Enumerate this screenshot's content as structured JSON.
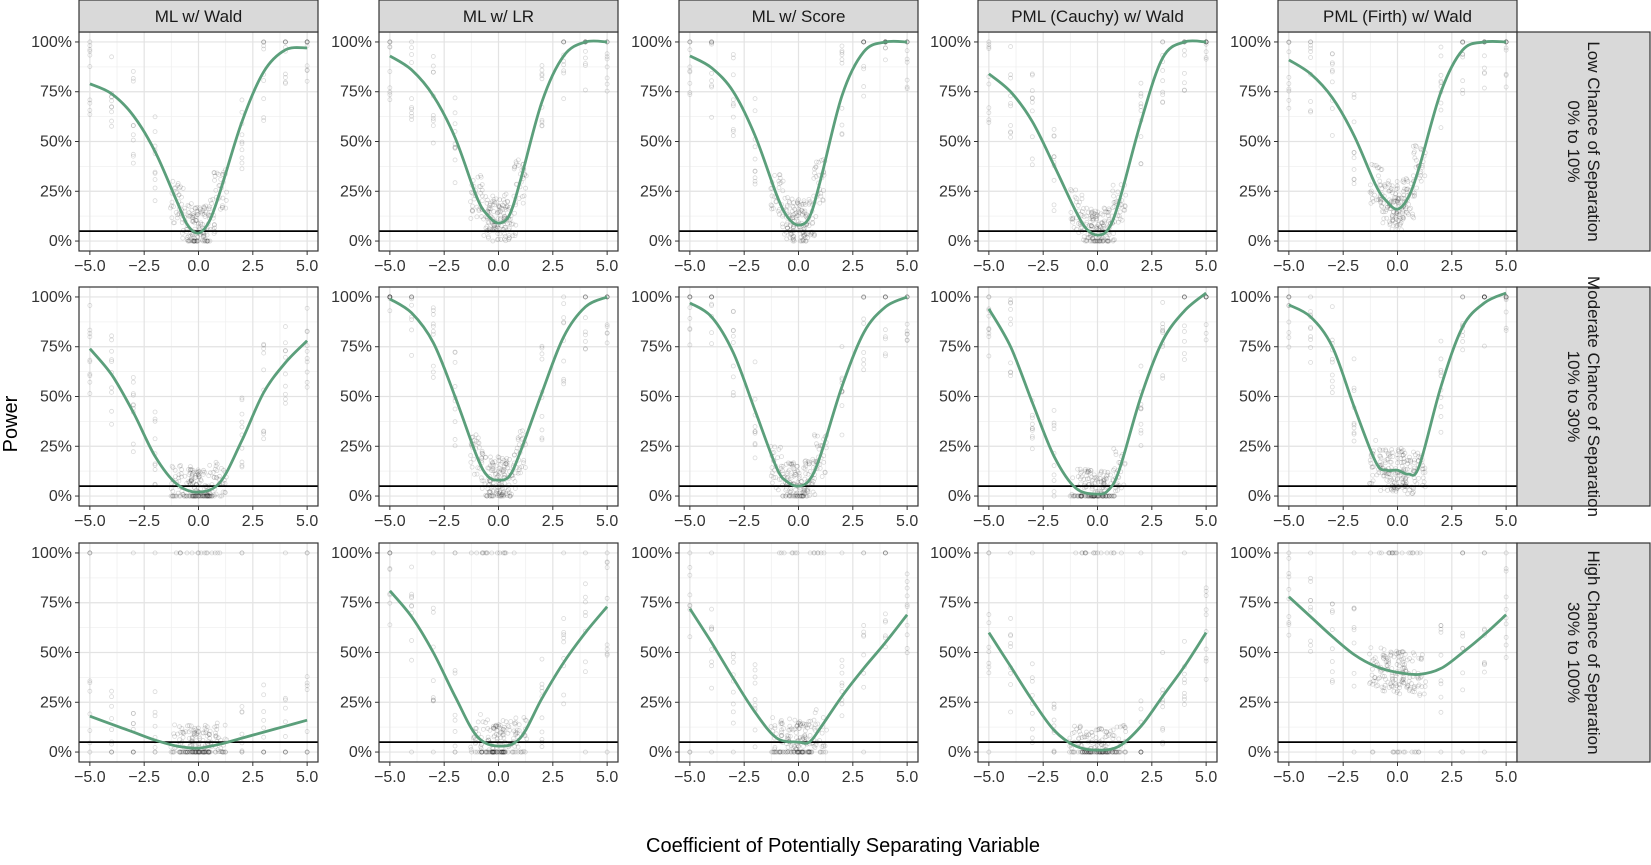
{
  "chart_data": {
    "type": "scatter",
    "facets": {
      "columns": [
        "ML w/ Wald",
        "ML w/ LR",
        "ML w/ Score",
        "PML (Cauchy) w/ Wald",
        "PML (Firth) w/ Wald"
      ],
      "rows": [
        [
          "Low Chance of Separation",
          "0% to 10%"
        ],
        [
          "Moderate Chance of Separation",
          "10% to 30%"
        ],
        [
          "High Chance of Separation",
          "30% to 100%"
        ]
      ]
    },
    "xlabel": "Coefficient of Potentially Separating Variable",
    "ylabel": "Power",
    "xlim": [
      -5,
      5
    ],
    "ylim": [
      0,
      1
    ],
    "x_ticks": [
      -5,
      -2.5,
      0,
      2.5,
      5
    ],
    "x_tick_labels": [
      "−5.0",
      "−2.5",
      "0.0",
      "2.5",
      "5.0"
    ],
    "y_ticks": [
      0,
      0.25,
      0.5,
      0.75,
      1
    ],
    "y_tick_labels": [
      "0%",
      "25%",
      "50%",
      "75%",
      "100%"
    ],
    "reference_line": 0.05,
    "grid": true,
    "colors": {
      "smooth": "#5b9f7b",
      "points": "#000000",
      "strip": "#d9d9d9",
      "reference": "#000000"
    },
    "series": [
      {
        "row": 0,
        "col": 0,
        "smooth": [
          [
            -5,
            0.79
          ],
          [
            -4,
            0.74
          ],
          [
            -3,
            0.63
          ],
          [
            -2,
            0.45
          ],
          [
            -1,
            0.2
          ],
          [
            -0.5,
            0.08
          ],
          [
            0,
            0.04
          ],
          [
            0.5,
            0.1
          ],
          [
            1,
            0.25
          ],
          [
            2,
            0.6
          ],
          [
            3,
            0.85
          ],
          [
            4,
            0.96
          ],
          [
            5,
            0.97
          ]
        ]
      },
      {
        "row": 0,
        "col": 1,
        "smooth": [
          [
            -5,
            0.93
          ],
          [
            -4,
            0.86
          ],
          [
            -3,
            0.73
          ],
          [
            -2,
            0.52
          ],
          [
            -1,
            0.22
          ],
          [
            -0.5,
            0.13
          ],
          [
            0,
            0.09
          ],
          [
            0.5,
            0.13
          ],
          [
            1,
            0.3
          ],
          [
            2,
            0.7
          ],
          [
            3,
            0.93
          ],
          [
            4,
            1.0
          ],
          [
            5,
            1.0
          ]
        ]
      },
      {
        "row": 0,
        "col": 2,
        "smooth": [
          [
            -5,
            0.93
          ],
          [
            -4,
            0.87
          ],
          [
            -3,
            0.75
          ],
          [
            -2,
            0.53
          ],
          [
            -1,
            0.23
          ],
          [
            -0.5,
            0.12
          ],
          [
            0,
            0.08
          ],
          [
            0.5,
            0.12
          ],
          [
            1,
            0.3
          ],
          [
            2,
            0.73
          ],
          [
            3,
            0.95
          ],
          [
            4,
            1.0
          ],
          [
            5,
            1.0
          ]
        ]
      },
      {
        "row": 0,
        "col": 3,
        "smooth": [
          [
            -5,
            0.84
          ],
          [
            -4,
            0.75
          ],
          [
            -3,
            0.6
          ],
          [
            -2,
            0.38
          ],
          [
            -1,
            0.15
          ],
          [
            -0.5,
            0.06
          ],
          [
            0,
            0.03
          ],
          [
            0.5,
            0.06
          ],
          [
            1,
            0.2
          ],
          [
            2,
            0.6
          ],
          [
            3,
            0.92
          ],
          [
            4,
            1.0
          ],
          [
            5,
            1.0
          ]
        ]
      },
      {
        "row": 0,
        "col": 4,
        "smooth": [
          [
            -5,
            0.91
          ],
          [
            -4,
            0.84
          ],
          [
            -3,
            0.72
          ],
          [
            -2,
            0.53
          ],
          [
            -1,
            0.28
          ],
          [
            -0.5,
            0.2
          ],
          [
            0,
            0.16
          ],
          [
            0.5,
            0.22
          ],
          [
            1,
            0.37
          ],
          [
            2,
            0.75
          ],
          [
            3,
            0.96
          ],
          [
            4,
            1.0
          ],
          [
            5,
            1.0
          ]
        ]
      },
      {
        "row": 1,
        "col": 0,
        "smooth": [
          [
            -5,
            0.74
          ],
          [
            -4,
            0.61
          ],
          [
            -3,
            0.42
          ],
          [
            -2,
            0.2
          ],
          [
            -1,
            0.06
          ],
          [
            0,
            0.02
          ],
          [
            1,
            0.07
          ],
          [
            2,
            0.28
          ],
          [
            3,
            0.52
          ],
          [
            4,
            0.67
          ],
          [
            5,
            0.78
          ]
        ]
      },
      {
        "row": 1,
        "col": 1,
        "smooth": [
          [
            -5,
            0.99
          ],
          [
            -4,
            0.92
          ],
          [
            -3,
            0.77
          ],
          [
            -2,
            0.5
          ],
          [
            -1,
            0.2
          ],
          [
            -0.5,
            0.1
          ],
          [
            0,
            0.08
          ],
          [
            0.5,
            0.1
          ],
          [
            1,
            0.22
          ],
          [
            2,
            0.52
          ],
          [
            3,
            0.8
          ],
          [
            4,
            0.95
          ],
          [
            5,
            1.0
          ]
        ]
      },
      {
        "row": 1,
        "col": 2,
        "smooth": [
          [
            -5,
            0.97
          ],
          [
            -4,
            0.9
          ],
          [
            -3,
            0.72
          ],
          [
            -2,
            0.43
          ],
          [
            -1,
            0.14
          ],
          [
            -0.5,
            0.07
          ],
          [
            0,
            0.05
          ],
          [
            0.5,
            0.08
          ],
          [
            1,
            0.2
          ],
          [
            2,
            0.55
          ],
          [
            3,
            0.82
          ],
          [
            4,
            0.95
          ],
          [
            5,
            1.0
          ]
        ]
      },
      {
        "row": 1,
        "col": 3,
        "smooth": [
          [
            -5,
            0.94
          ],
          [
            -4,
            0.75
          ],
          [
            -3,
            0.47
          ],
          [
            -2,
            0.2
          ],
          [
            -1,
            0.04
          ],
          [
            0,
            0.01
          ],
          [
            0.5,
            0.03
          ],
          [
            1,
            0.13
          ],
          [
            2,
            0.5
          ],
          [
            3,
            0.78
          ],
          [
            4,
            0.93
          ],
          [
            5,
            1.02
          ]
        ]
      },
      {
        "row": 1,
        "col": 4,
        "smooth": [
          [
            -5,
            0.96
          ],
          [
            -4,
            0.9
          ],
          [
            -3,
            0.75
          ],
          [
            -2,
            0.45
          ],
          [
            -1,
            0.17
          ],
          [
            -0.5,
            0.13
          ],
          [
            0,
            0.13
          ],
          [
            0.5,
            0.11
          ],
          [
            1,
            0.15
          ],
          [
            2,
            0.55
          ],
          [
            3,
            0.85
          ],
          [
            4,
            0.97
          ],
          [
            5,
            1.02
          ]
        ]
      },
      {
        "row": 2,
        "col": 0,
        "smooth": [
          [
            -5,
            0.18
          ],
          [
            -4,
            0.14
          ],
          [
            -3,
            0.1
          ],
          [
            -2,
            0.06
          ],
          [
            -1,
            0.03
          ],
          [
            0,
            0.02
          ],
          [
            1,
            0.04
          ],
          [
            2,
            0.07
          ],
          [
            3,
            0.1
          ],
          [
            4,
            0.13
          ],
          [
            5,
            0.16
          ]
        ]
      },
      {
        "row": 2,
        "col": 1,
        "smooth": [
          [
            -5,
            0.81
          ],
          [
            -4,
            0.68
          ],
          [
            -3,
            0.5
          ],
          [
            -2,
            0.28
          ],
          [
            -1,
            0.08
          ],
          [
            0,
            0.03
          ],
          [
            1,
            0.07
          ],
          [
            2,
            0.27
          ],
          [
            3,
            0.45
          ],
          [
            4,
            0.6
          ],
          [
            5,
            0.73
          ]
        ]
      },
      {
        "row": 2,
        "col": 2,
        "smooth": [
          [
            -5,
            0.72
          ],
          [
            -4,
            0.55
          ],
          [
            -3,
            0.37
          ],
          [
            -2,
            0.2
          ],
          [
            -1,
            0.07
          ],
          [
            0,
            0.05
          ],
          [
            0.5,
            0.05
          ],
          [
            1,
            0.12
          ],
          [
            2,
            0.28
          ],
          [
            3,
            0.42
          ],
          [
            4,
            0.55
          ],
          [
            5,
            0.69
          ]
        ]
      },
      {
        "row": 2,
        "col": 3,
        "smooth": [
          [
            -5,
            0.6
          ],
          [
            -4,
            0.43
          ],
          [
            -3,
            0.26
          ],
          [
            -2,
            0.11
          ],
          [
            -1,
            0.03
          ],
          [
            0,
            0.01
          ],
          [
            1,
            0.03
          ],
          [
            2,
            0.13
          ],
          [
            3,
            0.28
          ],
          [
            4,
            0.43
          ],
          [
            5,
            0.6
          ]
        ]
      },
      {
        "row": 2,
        "col": 4,
        "smooth": [
          [
            -5,
            0.78
          ],
          [
            -4,
            0.68
          ],
          [
            -3,
            0.58
          ],
          [
            -2,
            0.49
          ],
          [
            -1,
            0.43
          ],
          [
            0,
            0.4
          ],
          [
            1,
            0.39
          ],
          [
            2,
            0.42
          ],
          [
            3,
            0.5
          ],
          [
            4,
            0.59
          ],
          [
            5,
            0.69
          ]
        ]
      }
    ]
  }
}
